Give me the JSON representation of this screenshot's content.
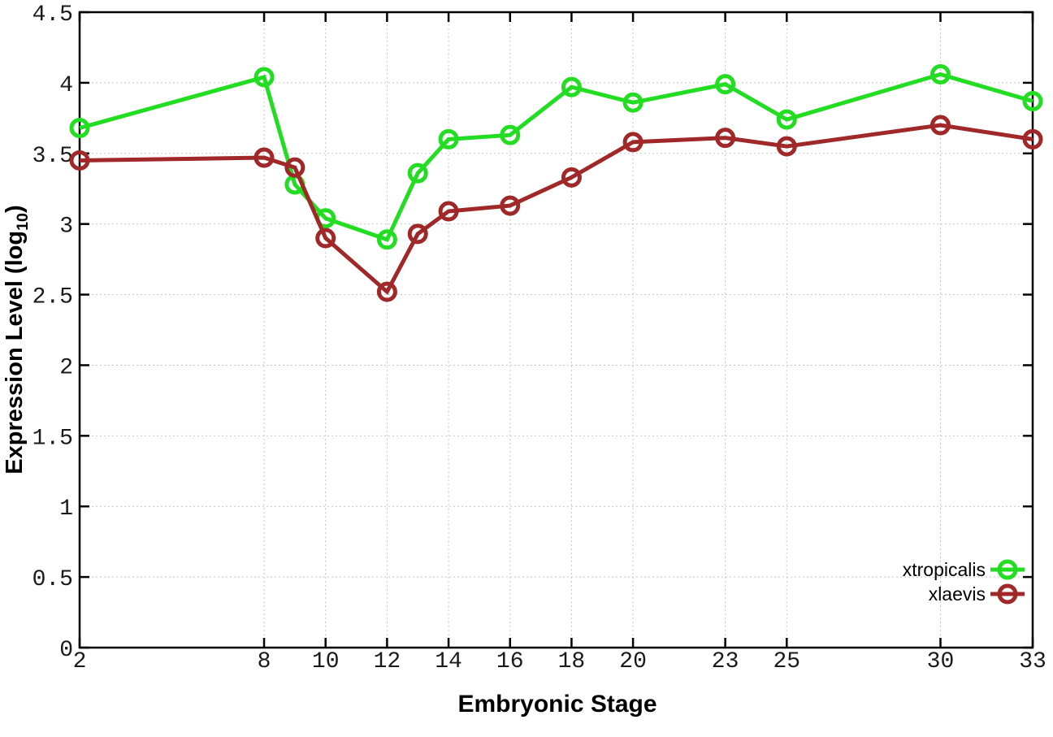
{
  "chart_data": {
    "type": "line",
    "title": "",
    "xlabel": "Embryonic Stage",
    "ylabel": {
      "pre": "Expression Level (log",
      "sub": "10",
      "post": ")"
    },
    "x": [
      2,
      8,
      9,
      10,
      12,
      13,
      14,
      16,
      18,
      20,
      23,
      25,
      30,
      33
    ],
    "series": [
      {
        "name": "xtropicalis",
        "color": "#22dd22",
        "values": [
          3.68,
          4.04,
          3.28,
          3.04,
          2.89,
          3.36,
          3.6,
          3.63,
          3.97,
          3.86,
          3.99,
          3.74,
          4.06,
          3.87
        ]
      },
      {
        "name": "xlaevis",
        "color": "#a02828",
        "values": [
          3.45,
          3.47,
          3.4,
          2.9,
          2.52,
          2.93,
          3.09,
          3.13,
          3.33,
          3.58,
          3.61,
          3.55,
          3.7,
          3.6
        ]
      }
    ],
    "xlim": [
      2,
      33
    ],
    "ylim": [
      0,
      4.5
    ],
    "xtick_values": [
      2,
      8,
      10,
      12,
      14,
      16,
      18,
      20,
      23,
      25,
      30,
      33
    ],
    "xtick_labels": [
      "2",
      "8",
      "10",
      "12",
      "14",
      "16",
      "18",
      "20",
      "23",
      "25",
      "30",
      "33"
    ],
    "ytick_values": [
      0,
      0.5,
      1,
      1.5,
      2,
      2.5,
      3,
      3.5,
      4,
      4.5
    ],
    "ytick_labels": [
      "0",
      "0.5",
      "1",
      "1.5",
      "2",
      "2.5",
      "3",
      "3.5",
      "4",
      "4.5"
    ],
    "grid": true,
    "legend_position": "bottom-right",
    "marker": "open-circle",
    "colors": {
      "grid": "#c8c8c8",
      "axis": "#000000",
      "tick_label": "#1a1a1a",
      "background": "#ffffff"
    }
  }
}
